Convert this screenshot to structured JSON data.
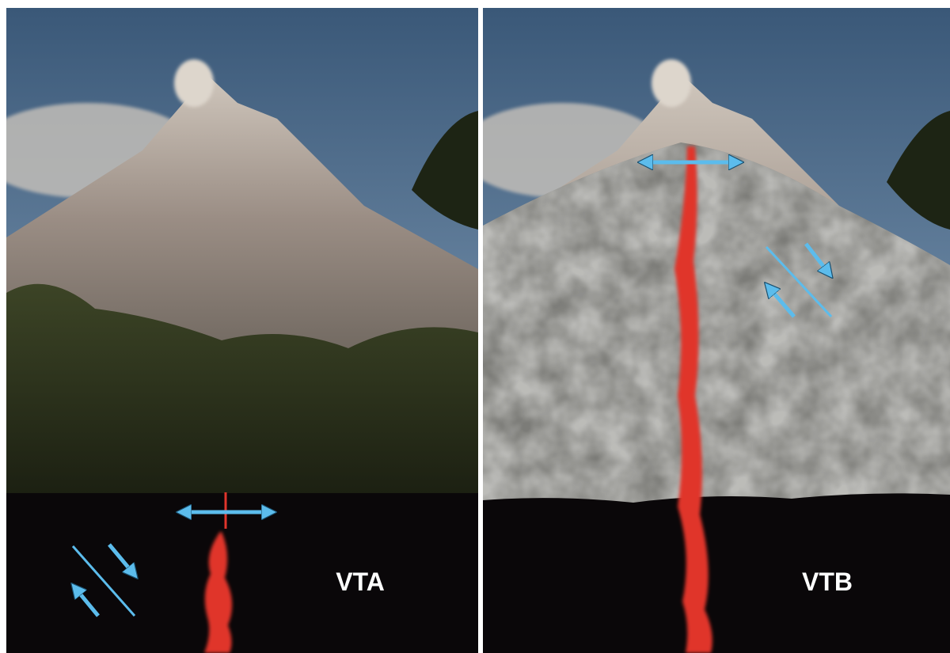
{
  "panels": [
    {
      "label": "VTA"
    },
    {
      "label": "VTB"
    }
  ]
}
